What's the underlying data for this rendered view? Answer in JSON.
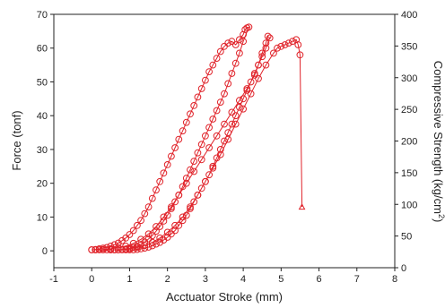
{
  "chart_data": {
    "type": "scatter",
    "xlabel": "Acctuator Stroke  (mm)",
    "ylabel": "Force  (tonf)",
    "y2label": "Compressive Strength (kg/cm",
    "y2label_sup": "2",
    "y2label_end": ")",
    "xlim": [
      -1,
      8
    ],
    "ylim": [
      -5,
      70
    ],
    "y2lim": [
      0,
      400
    ],
    "xticks": [
      "-1",
      "0",
      "1",
      "2",
      "3",
      "4",
      "5",
      "6",
      "7",
      "8"
    ],
    "yticks": [
      "0",
      "10",
      "20",
      "30",
      "40",
      "50",
      "60",
      "70"
    ],
    "y2ticks": [
      "0",
      "50",
      "100",
      "150",
      "200",
      "250",
      "300",
      "350",
      "400"
    ],
    "grid": false,
    "legend": "none",
    "colors": {
      "series": "#e0232a",
      "axis": "#222222"
    },
    "series": [
      {
        "marker": "open-circle",
        "x": [
          0.0,
          0.1,
          0.2,
          0.3,
          0.4,
          0.5,
          0.6,
          0.7,
          0.8,
          0.9,
          1.0,
          1.1,
          1.2,
          1.3,
          1.4,
          1.5,
          1.6,
          1.7,
          1.8,
          1.9,
          2.0,
          2.1,
          2.2,
          2.3,
          2.4,
          2.5,
          2.6,
          2.7,
          2.8,
          2.9,
          3.0,
          3.1,
          3.2,
          3.3,
          3.4,
          3.5,
          3.6,
          3.7,
          3.8,
          3.9,
          4.0,
          4.05,
          4.1,
          4.15,
          4.0,
          3.9,
          3.8,
          3.7,
          3.6,
          3.5,
          3.4,
          3.3,
          3.2,
          3.1,
          3.0,
          2.9,
          2.8,
          2.7,
          2.6,
          2.5,
          2.4,
          2.3,
          2.2,
          2.1,
          2.0,
          1.9,
          1.8,
          1.7,
          1.6,
          1.5,
          1.4,
          1.3,
          1.2,
          1.1,
          1.0,
          0.9,
          0.8,
          0.7,
          0.6,
          0.5,
          0.4,
          0.3,
          0.2,
          0.1,
          0.0,
          0.1,
          0.3,
          0.5,
          0.7,
          0.9,
          1.1,
          1.3,
          1.5,
          1.7,
          1.9,
          2.1,
          2.3,
          2.5,
          2.7,
          2.9,
          3.1,
          3.3,
          3.5,
          3.7,
          3.9,
          4.1,
          4.3,
          4.4,
          4.5,
          4.6,
          4.65,
          4.7,
          4.6,
          4.5,
          4.4,
          4.3,
          4.2,
          4.1,
          4.0,
          3.9,
          3.8,
          3.7,
          3.6,
          3.5,
          3.4,
          3.3,
          3.2,
          3.1,
          3.0,
          2.9,
          2.8,
          2.7,
          2.6,
          2.5,
          2.4,
          2.3,
          2.2,
          2.1,
          2.0,
          1.9,
          1.8,
          1.7,
          1.6,
          1.5,
          1.4,
          1.3,
          1.2,
          1.1,
          1.0,
          0.9,
          0.8,
          0.7,
          0.6,
          0.5,
          0.6,
          0.8,
          1.0,
          1.2,
          1.4,
          1.6,
          1.8,
          2.0,
          2.2,
          2.4,
          2.6,
          2.8,
          3.0,
          3.2,
          3.4,
          3.6,
          3.8,
          4.0,
          4.2,
          4.4,
          4.6,
          4.8,
          4.9,
          5.0,
          5.1,
          5.2,
          5.3,
          5.4,
          5.45,
          5.5,
          5.55
        ],
        "y": [
          0.3,
          0.4,
          0.6,
          0.8,
          1.0,
          1.4,
          1.8,
          2.3,
          3.0,
          3.8,
          4.8,
          6.0,
          7.5,
          9.0,
          11.0,
          13.0,
          15.5,
          18.0,
          20.5,
          23.0,
          25.5,
          28.0,
          30.5,
          33.0,
          35.5,
          38.0,
          40.5,
          43.0,
          45.5,
          48.0,
          50.5,
          53.0,
          55.0,
          57.0,
          59.0,
          60.5,
          61.5,
          62.0,
          61.0,
          62.5,
          64.0,
          65.5,
          66.0,
          66.2,
          62.0,
          58.5,
          55.5,
          52.5,
          49.5,
          46.5,
          44.0,
          41.5,
          39.0,
          36.5,
          34.0,
          31.5,
          29.0,
          26.5,
          24.0,
          21.5,
          19.0,
          16.5,
          14.5,
          12.5,
          10.5,
          8.8,
          7.2,
          5.8,
          4.5,
          3.5,
          2.6,
          1.9,
          1.4,
          1.0,
          0.7,
          0.5,
          0.4,
          0.3,
          0.3,
          0.3,
          0.3,
          0.3,
          0.3,
          0.3,
          0.3,
          0.3,
          0.4,
          0.6,
          0.9,
          1.4,
          2.2,
          3.4,
          5.0,
          7.2,
          10.0,
          13.0,
          16.5,
          20.0,
          23.5,
          27.0,
          30.5,
          34.0,
          37.5,
          41.0,
          44.5,
          48.0,
          52.0,
          55.0,
          58.5,
          61.5,
          63.5,
          63.0,
          60.0,
          57.5,
          55.0,
          52.5,
          50.0,
          47.5,
          45.0,
          42.5,
          40.0,
          37.5,
          35.0,
          32.5,
          30.0,
          27.5,
          25.0,
          22.5,
          20.5,
          18.5,
          16.5,
          14.5,
          12.5,
          10.5,
          9.0,
          7.5,
          6.0,
          5.0,
          4.0,
          3.2,
          2.5,
          2.0,
          1.5,
          1.1,
          0.8,
          0.6,
          0.4,
          0.3,
          0.3,
          0.3,
          0.3,
          0.3,
          0.3,
          0.3,
          0.3,
          0.4,
          0.6,
          1.0,
          1.6,
          2.5,
          3.8,
          5.5,
          7.5,
          10.0,
          13.0,
          16.5,
          20.5,
          24.5,
          28.5,
          33.0,
          37.5,
          42.0,
          46.5,
          51.0,
          55.0,
          58.5,
          60.0,
          60.5,
          61.0,
          61.5,
          62.0,
          62.5,
          61.0,
          58.0,
          13.0
        ]
      }
    ]
  }
}
